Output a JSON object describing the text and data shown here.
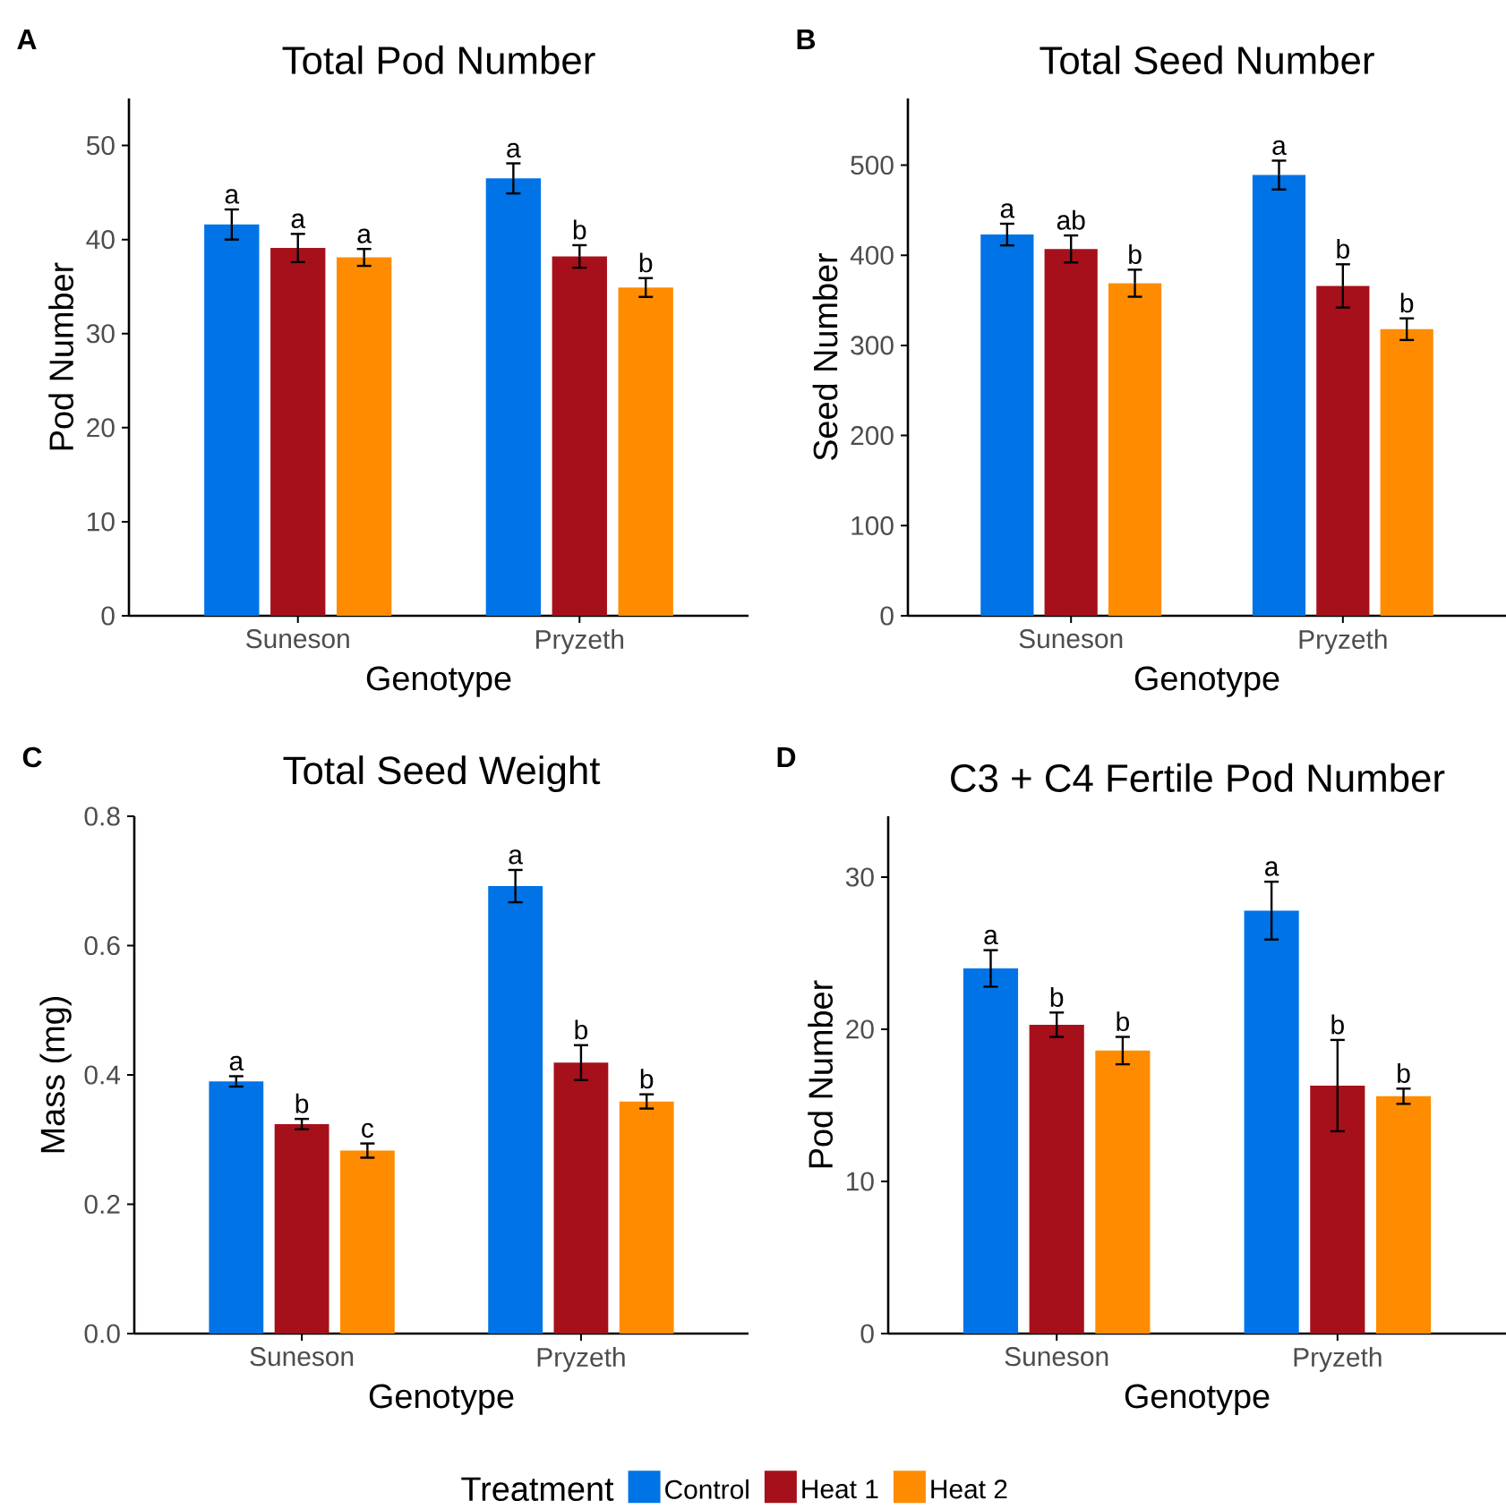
{
  "chart_data": [
    {
      "type": "bar",
      "title": "Total Pod Number",
      "xlabel": "Genotype",
      "ylabel": "Pod Number",
      "annotations": [
        "A"
      ],
      "categories": [
        "Suneson",
        "Pryzeth"
      ],
      "ylim": [
        0,
        55
      ],
      "yticks": [
        0,
        10,
        20,
        30,
        40,
        50
      ],
      "series": [
        {
          "color": "#0073e6",
          "values": [
            41.6,
            46.5
          ],
          "errors": [
            1.6,
            1.6
          ],
          "value_labels": [
            "a",
            "a"
          ]
        },
        {
          "color": "#a6101b",
          "values": [
            39.1,
            38.2
          ],
          "errors": [
            1.5,
            1.2
          ],
          "value_labels": [
            "a",
            "b"
          ]
        },
        {
          "color": "#ff8c00",
          "values": [
            38.1,
            34.9
          ],
          "errors": [
            0.9,
            1.0
          ],
          "value_labels": [
            "a",
            "b"
          ]
        }
      ]
    },
    {
      "type": "bar",
      "title": "Total Seed Number",
      "xlabel": "Genotype",
      "ylabel": "Seed Number",
      "annotations": [
        "B"
      ],
      "categories": [
        "Suneson",
        "Pryzeth"
      ],
      "ylim": [
        0,
        574
      ],
      "yticks": [
        0,
        100,
        200,
        300,
        400,
        500
      ],
      "series": [
        {
          "color": "#0073e6",
          "values": [
            423,
            489
          ],
          "errors": [
            12,
            16
          ],
          "value_labels": [
            "a",
            "a"
          ]
        },
        {
          "color": "#a6101b",
          "values": [
            407,
            366
          ],
          "errors": [
            15,
            24
          ],
          "value_labels": [
            "ab",
            "b"
          ]
        },
        {
          "color": "#ff8c00",
          "values": [
            369,
            318
          ],
          "errors": [
            15,
            12
          ],
          "value_labels": [
            "b",
            "b"
          ]
        }
      ]
    },
    {
      "type": "bar",
      "title": "Total Seed Weight",
      "xlabel": "Genotype",
      "ylabel": "Mass (mg)",
      "annotations": [
        "C"
      ],
      "categories": [
        "Suneson",
        "Pryzeth"
      ],
      "ylim": [
        0,
        0.8
      ],
      "yticks": [
        {
          "value": 0,
          "label": "0.0"
        },
        {
          "value": 0.2,
          "label": "0.2"
        },
        {
          "value": 0.4,
          "label": "0.4"
        },
        {
          "value": 0.6,
          "label": "0.6"
        },
        {
          "value": 0.8,
          "label": "0.8"
        }
      ],
      "series": [
        {
          "color": "#0073e6",
          "values": [
            0.39,
            0.692
          ],
          "errors": [
            0.008,
            0.025
          ],
          "value_labels": [
            "a",
            "a"
          ]
        },
        {
          "color": "#a6101b",
          "values": [
            0.324,
            0.419
          ],
          "errors": [
            0.008,
            0.027
          ],
          "value_labels": [
            "b",
            "b"
          ]
        },
        {
          "color": "#ff8c00",
          "values": [
            0.283,
            0.359
          ],
          "errors": [
            0.011,
            0.011
          ],
          "value_labels": [
            "c",
            "b"
          ]
        }
      ]
    },
    {
      "type": "bar",
      "title": "C3 + C4 Fertile Pod Number",
      "xlabel": "Genotype",
      "ylabel": "Pod Number",
      "annotations": [
        "D"
      ],
      "categories": [
        "Suneson",
        "Pryzeth"
      ],
      "ylim": [
        0,
        34
      ],
      "yticks": [
        0,
        10,
        20,
        30
      ],
      "legend": "bottom",
      "legend_title": "Treatment",
      "series": [
        {
          "name": "Control",
          "color": "#0073e6",
          "values": [
            24.0,
            27.8
          ],
          "errors": [
            1.2,
            1.9
          ],
          "value_labels": [
            "a",
            "a"
          ]
        },
        {
          "name": "Heat 1",
          "color": "#a6101b",
          "values": [
            20.3,
            16.3
          ],
          "errors": [
            0.8,
            3.0
          ],
          "value_labels": [
            "b",
            "b"
          ]
        },
        {
          "name": "Heat 2",
          "color": "#ff8c00",
          "values": [
            18.6,
            15.6
          ],
          "errors": [
            0.9,
            0.5
          ],
          "value_labels": [
            "b",
            "b"
          ]
        }
      ]
    }
  ]
}
